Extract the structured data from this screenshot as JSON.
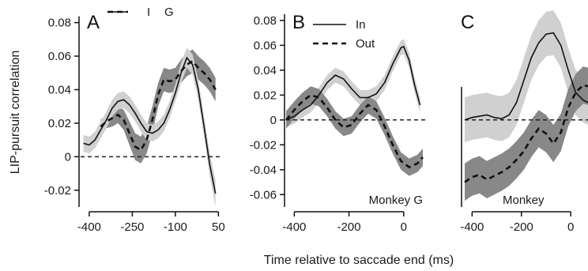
{
  "figure": {
    "xlabel": "Time relative to saccade end (ms)",
    "ylabel": "LIP-pursuit correlation"
  },
  "colors": {
    "band_dark": "#888888",
    "band_light": "#d0d0d0",
    "line": "#111111"
  },
  "chart_data": [
    {
      "type": "line",
      "panel": "A",
      "xlim": [
        -430,
        60
      ],
      "ylim": [
        -0.03,
        0.085
      ],
      "xticks": [
        -400,
        -250,
        -100,
        50
      ],
      "xtick_labels": [
        "-400",
        "-250",
        "-100",
        "50"
      ],
      "yticks": [
        -0.02,
        0,
        0.02,
        0.04,
        0.06,
        0.08
      ],
      "ytick_labels": [
        "-0.02",
        "0",
        "0.02",
        "0.04",
        "0.06",
        "0.08"
      ],
      "legend": [
        "I",
        "G"
      ],
      "legend_position": "top-left",
      "grid": false,
      "zero_line": true,
      "series": [
        {
          "name": "I",
          "style": "dashed",
          "band": "dark",
          "x": [
            -360,
            -340,
            -320,
            -300,
            -280,
            -260,
            -240,
            -220,
            -200,
            -180,
            -160,
            -140,
            -120,
            -100,
            -80,
            -60,
            -40,
            -20,
            0,
            20,
            40
          ],
          "y": [
            0.018,
            0.021,
            0.023,
            0.025,
            0.022,
            0.014,
            0.006,
            0.004,
            0.01,
            0.022,
            0.037,
            0.046,
            0.045,
            0.046,
            0.051,
            0.055,
            0.057,
            0.053,
            0.05,
            0.046,
            0.04
          ],
          "band_half_width": [
            0.004,
            0.004,
            0.005,
            0.005,
            0.006,
            0.007,
            0.008,
            0.008,
            0.008,
            0.008,
            0.007,
            0.007,
            0.007,
            0.007,
            0.007,
            0.007,
            0.007,
            0.007,
            0.007,
            0.007,
            0.007
          ]
        },
        {
          "name": "G",
          "style": "solid",
          "band": "light",
          "x": [
            -420,
            -400,
            -380,
            -360,
            -340,
            -320,
            -300,
            -280,
            -260,
            -240,
            -220,
            -200,
            -180,
            -160,
            -140,
            -120,
            -100,
            -80,
            -60,
            -40,
            -20,
            0,
            20,
            40
          ],
          "y": [
            0.008,
            0.007,
            0.01,
            0.016,
            0.022,
            0.029,
            0.033,
            0.034,
            0.031,
            0.026,
            0.02,
            0.015,
            0.014,
            0.016,
            0.02,
            0.028,
            0.038,
            0.05,
            0.059,
            0.055,
            0.04,
            0.018,
            -0.005,
            -0.022
          ],
          "band_half_width": [
            0.005,
            0.005,
            0.005,
            0.005,
            0.005,
            0.005,
            0.005,
            0.005,
            0.005,
            0.005,
            0.005,
            0.005,
            0.005,
            0.005,
            0.005,
            0.005,
            0.005,
            0.006,
            0.006,
            0.006,
            0.006,
            0.006,
            0.007,
            0.008
          ]
        }
      ]
    },
    {
      "type": "line",
      "panel": "B",
      "xlim": [
        -430,
        70
      ],
      "ylim": [
        -0.07,
        0.085
      ],
      "xticks": [
        -400,
        -200,
        0
      ],
      "xtick_labels": [
        "-400",
        "-200",
        "0"
      ],
      "yticks": [
        -0.06,
        -0.04,
        -0.02,
        0,
        0.02,
        0.04,
        0.06,
        0.08
      ],
      "ytick_labels": [
        "-0.06",
        "-0.04",
        "-0.02",
        "0",
        "0.02",
        "0.04",
        "0.06",
        "0.08"
      ],
      "legend": [
        "In",
        "Out"
      ],
      "legend_position": "top-left",
      "annotation": "Monkey G",
      "grid": false,
      "zero_line": true,
      "series": [
        {
          "name": "In",
          "style": "solid",
          "band": "light",
          "x": [
            -430,
            -400,
            -370,
            -340,
            -310,
            -280,
            -250,
            -220,
            -190,
            -160,
            -130,
            -100,
            -70,
            -40,
            -10,
            0,
            20,
            40,
            60
          ],
          "y": [
            0.0,
            0.003,
            0.008,
            0.012,
            0.02,
            0.03,
            0.036,
            0.033,
            0.025,
            0.018,
            0.018,
            0.021,
            0.03,
            0.045,
            0.058,
            0.059,
            0.048,
            0.028,
            0.012
          ],
          "band_half_width": [
            0.006,
            0.006,
            0.006,
            0.006,
            0.006,
            0.006,
            0.006,
            0.006,
            0.006,
            0.006,
            0.006,
            0.006,
            0.006,
            0.006,
            0.006,
            0.006,
            0.006,
            0.006,
            0.006
          ]
        },
        {
          "name": "Out",
          "style": "dashed",
          "band": "dark",
          "x": [
            -430,
            -400,
            -370,
            -340,
            -310,
            -280,
            -250,
            -220,
            -190,
            -160,
            -130,
            -100,
            -70,
            -40,
            -10,
            20,
            50,
            70
          ],
          "y": [
            0.0,
            0.008,
            0.015,
            0.02,
            0.018,
            0.01,
            0.0,
            -0.006,
            -0.004,
            0.005,
            0.012,
            0.008,
            -0.005,
            -0.02,
            -0.033,
            -0.038,
            -0.035,
            -0.03
          ],
          "band_half_width": [
            0.007,
            0.007,
            0.007,
            0.007,
            0.007,
            0.007,
            0.007,
            0.007,
            0.007,
            0.007,
            0.007,
            0.007,
            0.007,
            0.007,
            0.007,
            0.007,
            0.007,
            0.007
          ]
        }
      ]
    },
    {
      "type": "line",
      "panel": "C",
      "xlim": [
        -430,
        70
      ],
      "ylim": [
        -0.07,
        0.085
      ],
      "xticks": [
        -400,
        -200,
        0
      ],
      "xtick_labels": [
        "-400",
        "-200",
        "0"
      ],
      "annotation": "Monkey",
      "grid": false,
      "zero_line": true,
      "series": [
        {
          "name": "",
          "style": "solid",
          "band": "light",
          "x": [
            -430,
            -400,
            -370,
            -340,
            -310,
            -280,
            -250,
            -220,
            -190,
            -160,
            -130,
            -100,
            -70,
            -40,
            -10,
            20,
            50,
            70
          ],
          "y": [
            0.0,
            0.002,
            0.003,
            0.004,
            0.002,
            0.001,
            0.004,
            0.014,
            0.032,
            0.05,
            0.062,
            0.069,
            0.07,
            0.06,
            0.04,
            0.022,
            0.016,
            0.014
          ],
          "band_half_width": [
            0.018,
            0.018,
            0.018,
            0.018,
            0.018,
            0.018,
            0.018,
            0.018,
            0.018,
            0.018,
            0.018,
            0.018,
            0.018,
            0.018,
            0.018,
            0.018,
            0.018,
            0.018
          ]
        },
        {
          "name": "",
          "style": "dashed",
          "band": "dark",
          "x": [
            -430,
            -400,
            -370,
            -340,
            -310,
            -280,
            -250,
            -220,
            -190,
            -160,
            -130,
            -100,
            -70,
            -40,
            -10,
            20,
            50,
            70
          ],
          "y": [
            -0.05,
            -0.046,
            -0.044,
            -0.048,
            -0.045,
            -0.042,
            -0.038,
            -0.032,
            -0.025,
            -0.015,
            -0.007,
            -0.011,
            -0.019,
            -0.01,
            0.01,
            0.022,
            0.028,
            0.027
          ],
          "band_half_width": [
            0.015,
            0.015,
            0.015,
            0.015,
            0.015,
            0.015,
            0.015,
            0.015,
            0.015,
            0.015,
            0.015,
            0.015,
            0.015,
            0.015,
            0.015,
            0.015,
            0.015,
            0.015
          ]
        }
      ]
    }
  ]
}
